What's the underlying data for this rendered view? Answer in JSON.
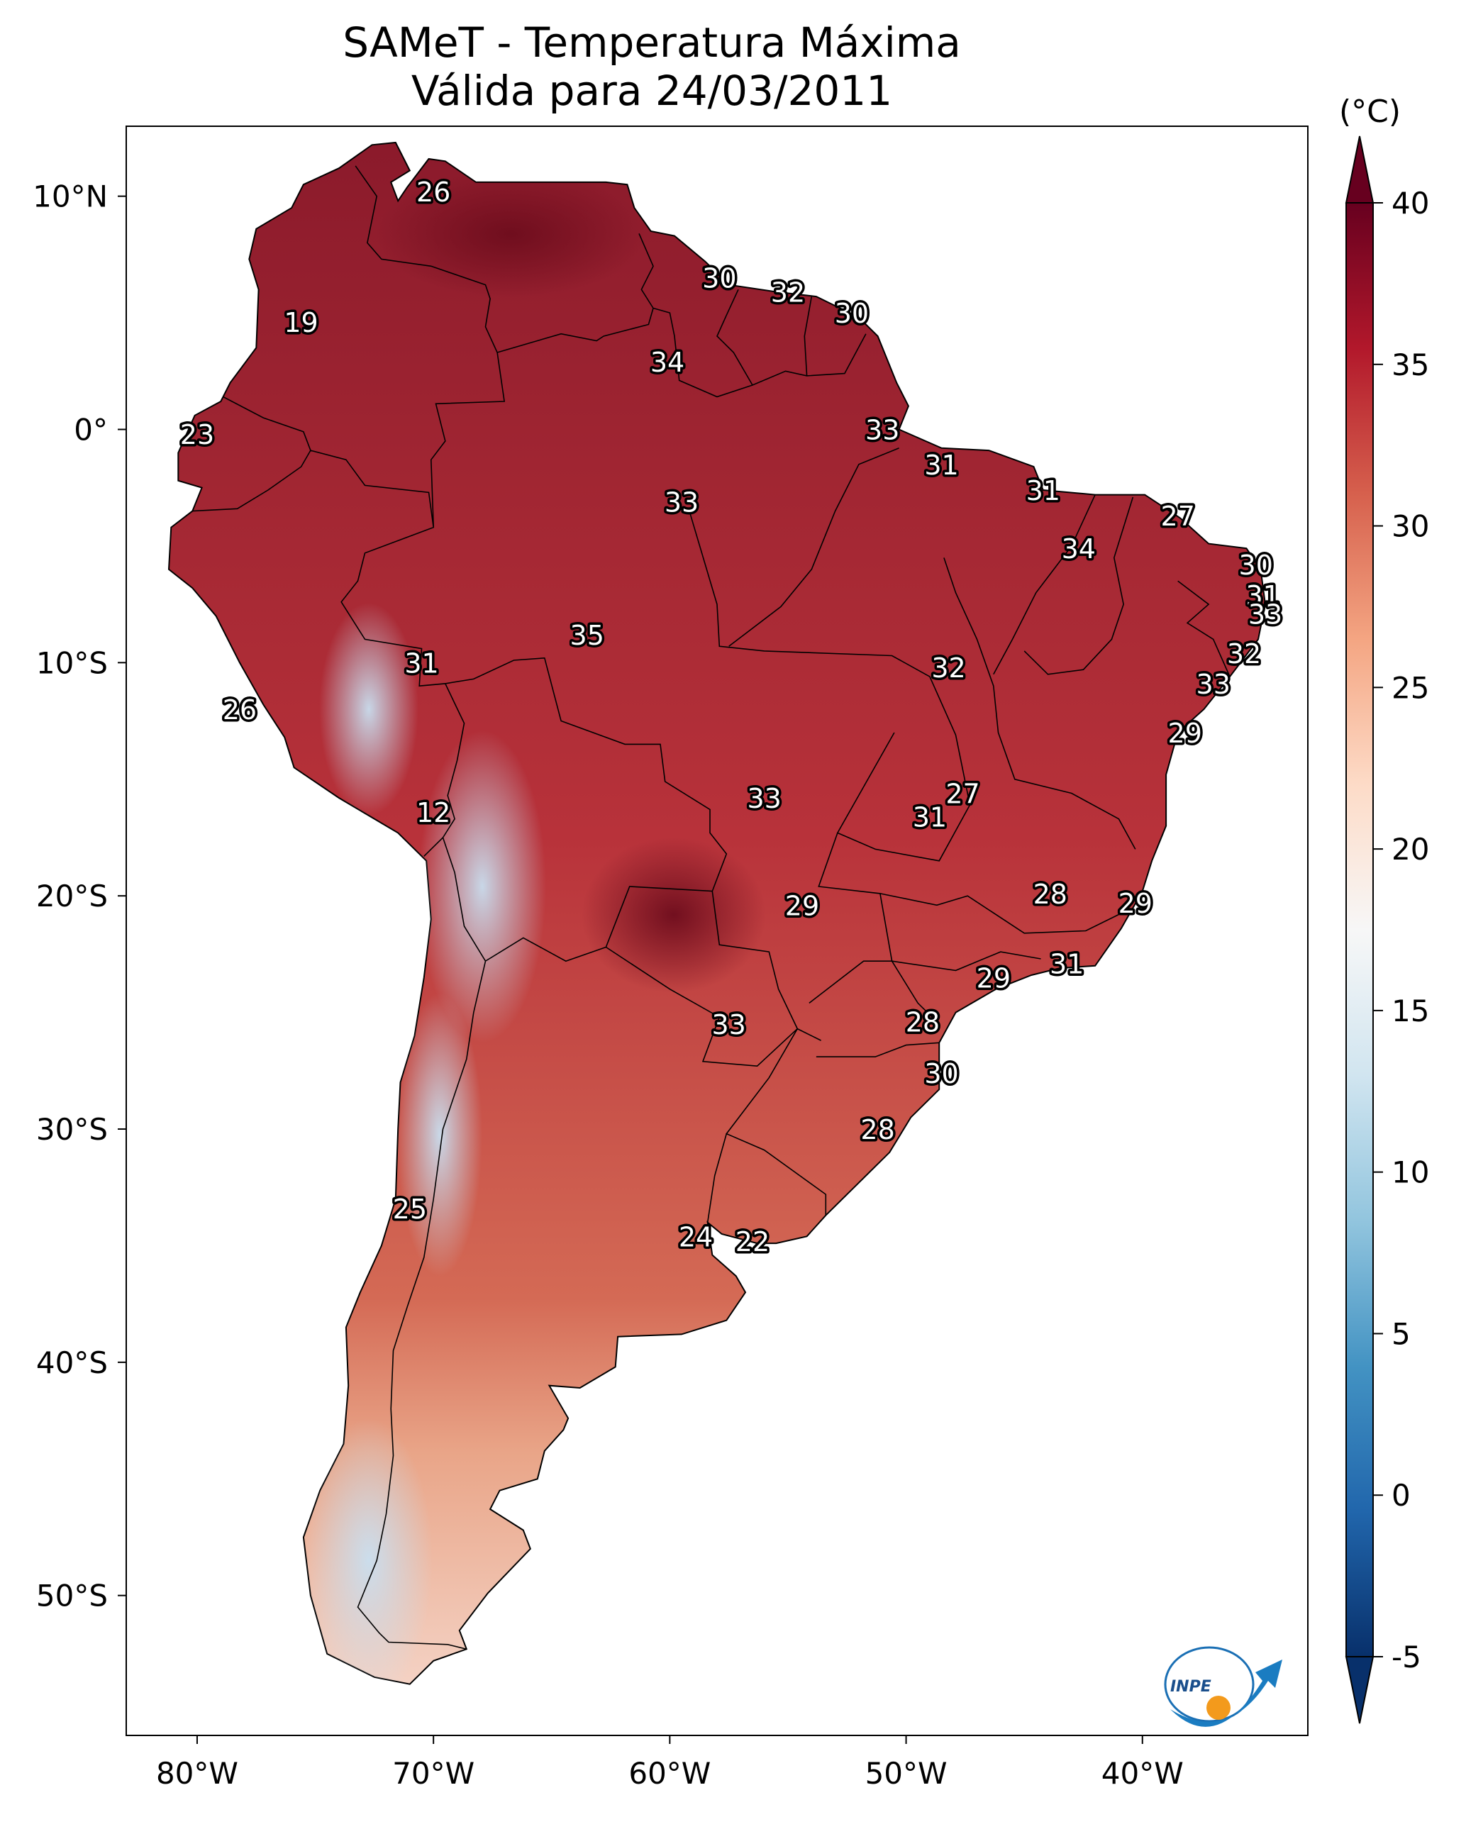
{
  "title": {
    "line1": "SAMeT - Temperatura Máxima",
    "line2": "Válida para 24/03/2011"
  },
  "colorbar": {
    "unit": "(°C)",
    "ticks": [
      "40",
      "35",
      "30",
      "25",
      "20",
      "15",
      "10",
      "5",
      "0",
      "-5"
    ],
    "vmin": -5,
    "vmax": 40,
    "colors": [
      "#08306b",
      "#2166ac",
      "#4393c3",
      "#92c5de",
      "#d1e5f0",
      "#f7f7f7",
      "#fddbc7",
      "#f4a582",
      "#d6604d",
      "#b2182b",
      "#67001f"
    ]
  },
  "axes": {
    "lon_labels": [
      "80°W",
      "70°W",
      "60°W",
      "50°W",
      "40°W"
    ],
    "lat_labels": [
      "10°N",
      "0°",
      "10°S",
      "20°S",
      "30°S",
      "40°S",
      "50°S"
    ],
    "lon_range": [
      -83,
      -33
    ],
    "lat_range": [
      -56,
      13
    ]
  },
  "station_labels": [
    {
      "value": "26",
      "lon": -70.0,
      "lat": 10.2
    },
    {
      "value": "30",
      "lon": -57.9,
      "lat": 6.5
    },
    {
      "value": "32",
      "lon": -55.0,
      "lat": 5.9
    },
    {
      "value": "30",
      "lon": -52.3,
      "lat": 5.0
    },
    {
      "value": "19",
      "lon": -75.6,
      "lat": 4.6
    },
    {
      "value": "34",
      "lon": -60.1,
      "lat": 2.9
    },
    {
      "value": "23",
      "lon": -80.0,
      "lat": -0.2
    },
    {
      "value": "33",
      "lon": -51.0,
      "lat": 0.0
    },
    {
      "value": "31",
      "lon": -48.5,
      "lat": -1.5
    },
    {
      "value": "31",
      "lon": -44.2,
      "lat": -2.6
    },
    {
      "value": "33",
      "lon": -59.5,
      "lat": -3.1
    },
    {
      "value": "27",
      "lon": -38.5,
      "lat": -3.7
    },
    {
      "value": "34",
      "lon": -42.7,
      "lat": -5.1
    },
    {
      "value": "30",
      "lon": -35.2,
      "lat": -5.8
    },
    {
      "value": "31",
      "lon": -34.9,
      "lat": -7.1
    },
    {
      "value": "33",
      "lon": -34.8,
      "lat": -7.9
    },
    {
      "value": "35",
      "lon": -63.5,
      "lat": -8.8
    },
    {
      "value": "32",
      "lon": -35.7,
      "lat": -9.6
    },
    {
      "value": "31",
      "lon": -70.5,
      "lat": -10.0
    },
    {
      "value": "32",
      "lon": -48.2,
      "lat": -10.2
    },
    {
      "value": "33",
      "lon": -37.0,
      "lat": -10.9
    },
    {
      "value": "26",
      "lon": -78.2,
      "lat": -12.0
    },
    {
      "value": "29",
      "lon": -38.2,
      "lat": -13.0
    },
    {
      "value": "27",
      "lon": -47.6,
      "lat": -15.6
    },
    {
      "value": "33",
      "lon": -56.0,
      "lat": -15.8
    },
    {
      "value": "31",
      "lon": -49.0,
      "lat": -16.6
    },
    {
      "value": "12",
      "lon": -70.0,
      "lat": -16.4
    },
    {
      "value": "28",
      "lon": -43.9,
      "lat": -19.9
    },
    {
      "value": "29",
      "lon": -54.4,
      "lat": -20.4
    },
    {
      "value": "29",
      "lon": -40.3,
      "lat": -20.3
    },
    {
      "value": "31",
      "lon": -43.2,
      "lat": -22.9
    },
    {
      "value": "29",
      "lon": -46.3,
      "lat": -23.5
    },
    {
      "value": "33",
      "lon": -57.5,
      "lat": -25.5
    },
    {
      "value": "28",
      "lon": -49.3,
      "lat": -25.4
    },
    {
      "value": "30",
      "lon": -48.5,
      "lat": -27.6
    },
    {
      "value": "28",
      "lon": -51.2,
      "lat": -30.0
    },
    {
      "value": "25",
      "lon": -71.0,
      "lat": -33.4
    },
    {
      "value": "24",
      "lon": -58.9,
      "lat": -34.6
    },
    {
      "value": "22",
      "lon": -56.5,
      "lat": -34.8
    }
  ],
  "logo": {
    "text": "INPE"
  }
}
